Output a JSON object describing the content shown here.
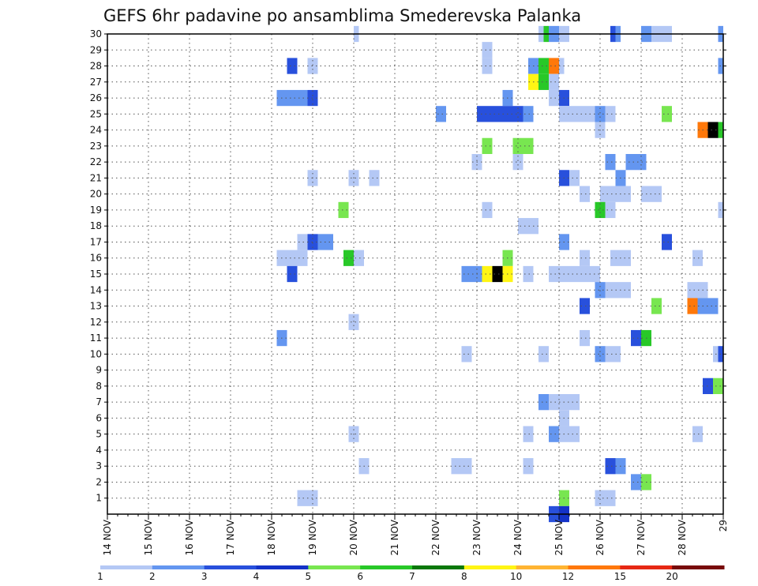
{
  "chart_data": {
    "type": "heatmap",
    "title": "GEFS 6hr padavine po ansamblima Smederevska Palanka",
    "x_tick_labels": [
      "14 NOV",
      "15 NOV",
      "16 NOV",
      "17 NOV",
      "18 NOV",
      "19 NOV",
      "20 NOV",
      "21 NOV",
      "22 NOV",
      "23 NOV",
      "24 NOV",
      "25 NOV",
      "26 NOV",
      "27 NOV",
      "28 NOV",
      "29"
    ],
    "y_tick_labels": [
      "1",
      "2",
      "3",
      "4",
      "5",
      "6",
      "7",
      "8",
      "9",
      "10",
      "11",
      "12",
      "13",
      "14",
      "15",
      "16",
      "17",
      "18",
      "19",
      "20",
      "21",
      "22",
      "23",
      "24",
      "25",
      "26",
      "27",
      "28",
      "29",
      "30"
    ],
    "xlim": [
      0,
      60
    ],
    "ylim": [
      0,
      30
    ],
    "grid": true,
    "colorbar": {
      "labels": [
        "1",
        "2",
        "3",
        "4",
        "5",
        "6",
        "7",
        "8",
        "10",
        "12",
        "15",
        "20"
      ],
      "colors": [
        "#b4c8f5",
        "#6496f0",
        "#2850dc",
        "#1432c8",
        "#78e650",
        "#28c828",
        "#0a780a",
        "#fff514",
        "#ffb432",
        "#ff780a",
        "#e62814",
        "#780a0a"
      ]
    },
    "cells": [
      {
        "y": 30,
        "x": [
          [
            24,
            24.5,
            1
          ]
        ]
      },
      {
        "y": 30,
        "x": [
          [
            42,
            42.5,
            1
          ],
          [
            42.5,
            43,
            6
          ],
          [
            43,
            44,
            2
          ],
          [
            44,
            45,
            1
          ],
          [
            49,
            49.5,
            3
          ],
          [
            49.5,
            50,
            2
          ],
          [
            52,
            53,
            2
          ],
          [
            53,
            55,
            1
          ],
          [
            59.5,
            60,
            2
          ]
        ]
      },
      {
        "y": 29,
        "x": [
          [
            36.5,
            37.5,
            1
          ]
        ]
      },
      {
        "y": 28,
        "x": [
          [
            17.5,
            18.5,
            3
          ],
          [
            19.5,
            20.5,
            1
          ],
          [
            36.5,
            37.5,
            1
          ],
          [
            41,
            42,
            2
          ],
          [
            42,
            43,
            6
          ],
          [
            43,
            44,
            10
          ],
          [
            44,
            44.5,
            1
          ],
          [
            59.5,
            60,
            2
          ]
        ]
      },
      {
        "y": 27,
        "x": [
          [
            41,
            42,
            8
          ],
          [
            42,
            43,
            6
          ],
          [
            43,
            44,
            1
          ]
        ]
      },
      {
        "y": 26,
        "x": [
          [
            16.5,
            19.5,
            2
          ],
          [
            19.5,
            20.5,
            3
          ],
          [
            38.5,
            39.5,
            2
          ],
          [
            43,
            44,
            1
          ],
          [
            44,
            45,
            3
          ]
        ]
      },
      {
        "y": 25,
        "x": [
          [
            32,
            33,
            2
          ],
          [
            36,
            40.5,
            3
          ],
          [
            40.5,
            41.5,
            2
          ],
          [
            44,
            47.5,
            1
          ],
          [
            47.5,
            48.5,
            2
          ],
          [
            48.5,
            49.5,
            1
          ],
          [
            54,
            55,
            5
          ]
        ]
      },
      {
        "y": 24,
        "x": [
          [
            47.5,
            48.5,
            1
          ],
          [
            57.5,
            58.5,
            10
          ],
          [
            58.5,
            59.5,
            15
          ],
          [
            59.5,
            60,
            6
          ]
        ]
      },
      {
        "y": 23,
        "x": [
          [
            36.5,
            37.5,
            5
          ],
          [
            39.5,
            41.5,
            5
          ]
        ]
      },
      {
        "y": 22,
        "x": [
          [
            35.5,
            36.5,
            1
          ],
          [
            39.5,
            40.5,
            1
          ],
          [
            48.5,
            49.5,
            2
          ],
          [
            50.5,
            52.5,
            2
          ]
        ]
      },
      {
        "y": 21,
        "x": [
          [
            19.5,
            20.5,
            1
          ],
          [
            23.5,
            24.5,
            1
          ],
          [
            25.5,
            26.5,
            1
          ],
          [
            44,
            45,
            3
          ],
          [
            45,
            46,
            1
          ],
          [
            49.5,
            50.5,
            2
          ]
        ]
      },
      {
        "y": 20,
        "x": [
          [
            46,
            47,
            1
          ],
          [
            48,
            51,
            1
          ],
          [
            52,
            54,
            1
          ]
        ]
      },
      {
        "y": 19,
        "x": [
          [
            22.5,
            23.5,
            5
          ],
          [
            36.5,
            37.5,
            1
          ],
          [
            47.5,
            48.5,
            6
          ],
          [
            48.5,
            49.5,
            1
          ],
          [
            59.5,
            60,
            1
          ]
        ]
      },
      {
        "y": 18,
        "x": [
          [
            40,
            42,
            1
          ]
        ]
      },
      {
        "y": 17,
        "x": [
          [
            18.5,
            19.5,
            1
          ],
          [
            19.5,
            20.5,
            3
          ],
          [
            20.5,
            22,
            2
          ],
          [
            44,
            45,
            2
          ],
          [
            54,
            55,
            3
          ]
        ]
      },
      {
        "y": 16,
        "x": [
          [
            16.5,
            19.5,
            1
          ],
          [
            23,
            24,
            6
          ],
          [
            24,
            25,
            1
          ],
          [
            38.5,
            39.5,
            5
          ],
          [
            46,
            47,
            1
          ],
          [
            49,
            51,
            1
          ],
          [
            57,
            58,
            1
          ]
        ]
      },
      {
        "y": 15,
        "x": [
          [
            17.5,
            18.5,
            3
          ],
          [
            34.5,
            36.5,
            2
          ],
          [
            36.5,
            37.5,
            8
          ],
          [
            37.5,
            38.5,
            15
          ],
          [
            38.5,
            39.5,
            8
          ],
          [
            40.5,
            41.5,
            1
          ],
          [
            43,
            48,
            1
          ]
        ]
      },
      {
        "y": 14,
        "x": [
          [
            47.5,
            48.5,
            2
          ],
          [
            48.5,
            51,
            1
          ],
          [
            56.5,
            58.5,
            1
          ]
        ]
      },
      {
        "y": 13,
        "x": [
          [
            46,
            47,
            3
          ],
          [
            53,
            54,
            5
          ],
          [
            56.5,
            57.5,
            10
          ],
          [
            57.5,
            59.5,
            2
          ]
        ]
      },
      {
        "y": 12,
        "x": [
          [
            23.5,
            24.5,
            1
          ]
        ]
      },
      {
        "y": 11,
        "x": [
          [
            16.5,
            17.5,
            2
          ],
          [
            46,
            47,
            1
          ],
          [
            51,
            52,
            3
          ],
          [
            52,
            53,
            6
          ]
        ]
      },
      {
        "y": 10,
        "x": [
          [
            34.5,
            35.5,
            1
          ],
          [
            42,
            43,
            1
          ],
          [
            47.5,
            48.5,
            2
          ],
          [
            48.5,
            50,
            1
          ],
          [
            59,
            59.5,
            1
          ],
          [
            59.5,
            60,
            3
          ]
        ]
      },
      {
        "y": 8,
        "x": [
          [
            58,
            59,
            3
          ],
          [
            59,
            60,
            5
          ]
        ]
      },
      {
        "y": 7,
        "x": [
          [
            42,
            43,
            2
          ],
          [
            43,
            46,
            1
          ]
        ]
      },
      {
        "y": 6,
        "x": [
          [
            44,
            45,
            1
          ]
        ]
      },
      {
        "y": 5,
        "x": [
          [
            23.5,
            24.5,
            1
          ],
          [
            40.5,
            41.5,
            1
          ],
          [
            43,
            44,
            2
          ],
          [
            44,
            46,
            1
          ],
          [
            57,
            58,
            1
          ]
        ]
      },
      {
        "y": 3,
        "x": [
          [
            24.5,
            25.5,
            1
          ],
          [
            33.5,
            35.5,
            1
          ],
          [
            40.5,
            41.5,
            1
          ],
          [
            48.5,
            49.5,
            3
          ],
          [
            49.5,
            50.5,
            2
          ]
        ]
      },
      {
        "y": 2,
        "x": [
          [
            51,
            52,
            2
          ],
          [
            52,
            53,
            5
          ]
        ]
      },
      {
        "y": 1,
        "x": [
          [
            18.5,
            20.5,
            1
          ],
          [
            44,
            45,
            5
          ],
          [
            47.5,
            49.5,
            1
          ]
        ]
      },
      {
        "y": 0,
        "x": [
          [
            43,
            44,
            3
          ],
          [
            44,
            45,
            4
          ]
        ]
      }
    ]
  }
}
